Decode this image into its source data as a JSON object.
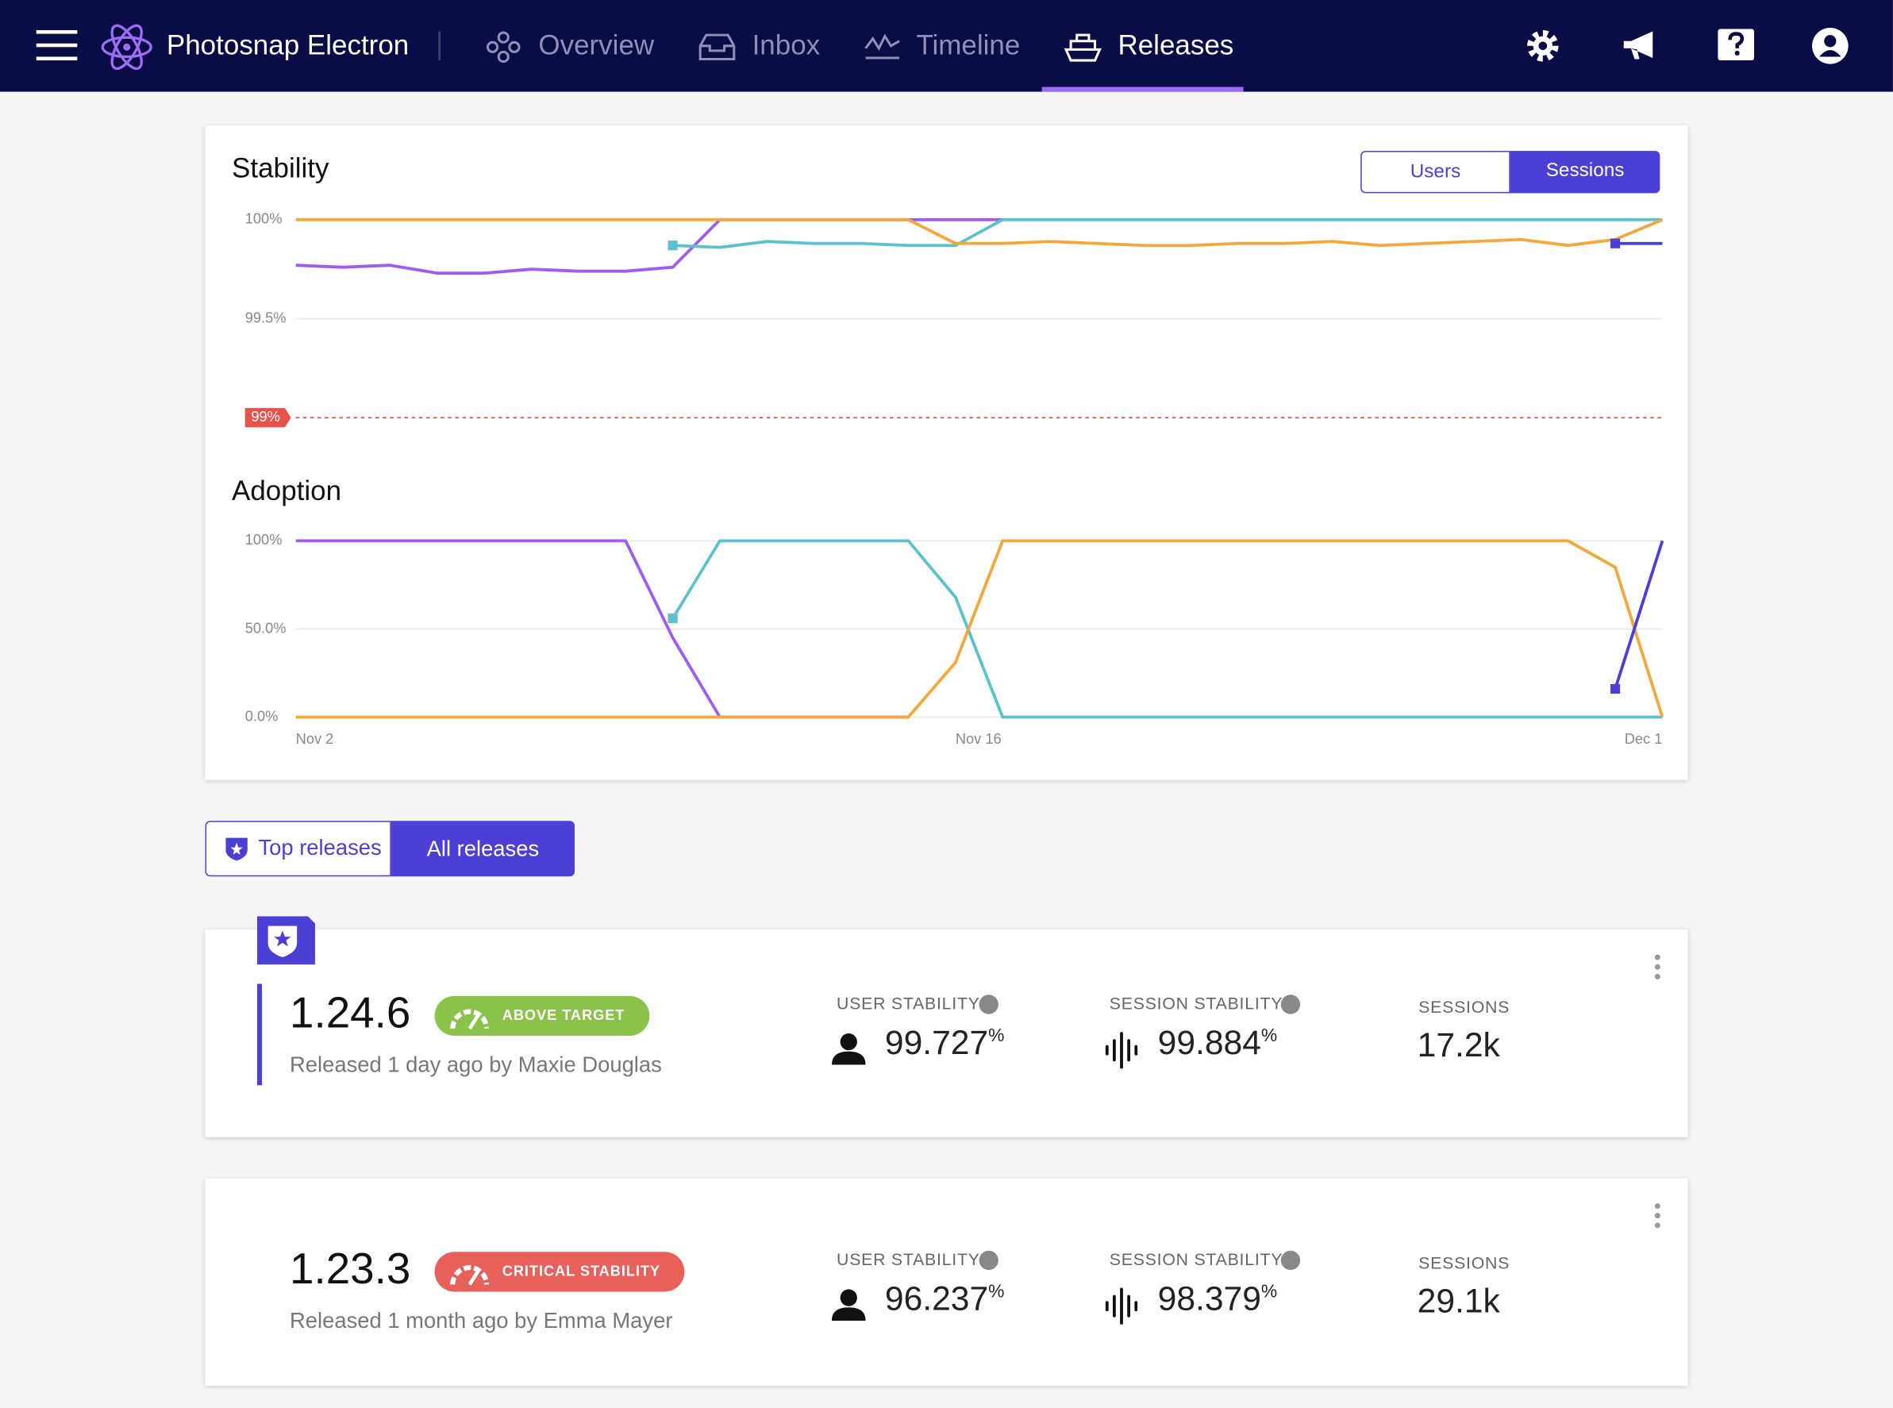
{
  "nav": {
    "app_name": "Photosnap Electron",
    "items": [
      "Overview",
      "Inbox",
      "Timeline",
      "Releases"
    ]
  },
  "chart_toggle": [
    "Users",
    "Sessions"
  ],
  "release_filter": [
    "Top releases",
    "All releases"
  ],
  "chart_data": [
    {
      "type": "line",
      "title": "Stability",
      "ylim": [
        99,
        100
      ],
      "yticks": [
        {
          "value": 99.5,
          "label": "99.5%"
        },
        {
          "value": 100,
          "label": "100%"
        }
      ],
      "grid": true,
      "threshold": {
        "value": 99,
        "label": "99%",
        "color": "#e5534b"
      },
      "categories": [
        null,
        null,
        null,
        null,
        null,
        null,
        null,
        null,
        null,
        null,
        null,
        null,
        null,
        null,
        null,
        null,
        null,
        null,
        null,
        null,
        null,
        null,
        null,
        null,
        null,
        null,
        null,
        null,
        null,
        null
      ],
      "series": [
        {
          "color": "#a05cf0",
          "values": [
            99.77,
            99.76,
            99.77,
            99.73,
            99.73,
            99.75,
            99.74,
            99.74,
            99.76,
            100,
            100,
            100,
            100,
            100,
            100,
            100,
            null,
            null,
            null,
            null,
            null,
            null,
            null,
            null,
            null,
            null,
            null,
            null,
            null,
            null
          ]
        },
        {
          "color": "#5bc0d0",
          "values": [
            null,
            null,
            null,
            null,
            null,
            null,
            null,
            null,
            99.87,
            99.86,
            99.89,
            99.88,
            99.88,
            99.87,
            99.87,
            100,
            100,
            100,
            100,
            100,
            100,
            100,
            100,
            100,
            100,
            100,
            100,
            100,
            100,
            100
          ]
        },
        {
          "color": "#f5a83a",
          "values": [
            100,
            100,
            100,
            100,
            100,
            100,
            100,
            100,
            100,
            100,
            100,
            100,
            100,
            100,
            99.88,
            99.88,
            99.89,
            99.88,
            99.87,
            99.87,
            99.88,
            99.88,
            99.89,
            99.87,
            99.88,
            99.89,
            99.9,
            99.87,
            99.9,
            100
          ]
        },
        {
          "color": "#4a3fd8",
          "values": [
            null,
            null,
            null,
            null,
            null,
            null,
            null,
            null,
            null,
            null,
            null,
            null,
            null,
            null,
            null,
            null,
            null,
            null,
            null,
            null,
            null,
            null,
            null,
            null,
            null,
            null,
            null,
            null,
            99.88,
            99.88
          ]
        }
      ]
    },
    {
      "type": "line",
      "title": "Adoption",
      "ylim": [
        0,
        100
      ],
      "yticks": [
        {
          "value": 0,
          "label": "0.0%"
        },
        {
          "value": 50,
          "label": "50.0%"
        },
        {
          "value": 100,
          "label": "100%"
        }
      ],
      "grid": true,
      "categories": [
        "Nov 2",
        null,
        null,
        null,
        null,
        null,
        null,
        null,
        null,
        null,
        null,
        null,
        null,
        null,
        "Nov 16",
        null,
        null,
        null,
        null,
        null,
        null,
        null,
        null,
        null,
        null,
        null,
        null,
        null,
        null,
        "Dec 1"
      ],
      "series": [
        {
          "color": "#a05cf0",
          "values": [
            100,
            100,
            100,
            100,
            100,
            100,
            100,
            100,
            45,
            0,
            0,
            0,
            0,
            0,
            null,
            null,
            null,
            null,
            null,
            null,
            null,
            null,
            null,
            null,
            null,
            null,
            null,
            null,
            null,
            null
          ]
        },
        {
          "color": "#5bc0d0",
          "values": [
            null,
            null,
            null,
            null,
            null,
            null,
            null,
            null,
            56,
            100,
            100,
            100,
            100,
            100,
            68,
            0,
            0,
            0,
            0,
            0,
            0,
            0,
            0,
            0,
            0,
            0,
            0,
            0,
            0,
            0
          ]
        },
        {
          "color": "#f5a83a",
          "values": [
            0,
            0,
            0,
            0,
            0,
            0,
            0,
            0,
            0,
            0,
            0,
            0,
            0,
            0,
            31,
            100,
            100,
            100,
            100,
            100,
            100,
            100,
            100,
            100,
            100,
            100,
            100,
            100,
            85,
            0
          ]
        },
        {
          "color": "#4a3fd8",
          "values": [
            null,
            null,
            null,
            null,
            null,
            null,
            null,
            null,
            null,
            null,
            null,
            null,
            null,
            null,
            null,
            null,
            null,
            null,
            null,
            null,
            null,
            null,
            null,
            null,
            null,
            null,
            null,
            null,
            16,
            100
          ]
        }
      ]
    }
  ],
  "releases": [
    {
      "version": "1.24.6",
      "badge": "ABOVE TARGET",
      "badge_color": "#8bc34a",
      "released": "Released 1 day ago by Maxie Douglas",
      "user_label": "USER STABILITY",
      "user_value": "99.727",
      "user_unit": "%",
      "session_label": "SESSION STABILITY",
      "session_value": "99.884",
      "session_unit": "%",
      "sessions_label": "SESSIONS",
      "sessions_value": "17.2k"
    },
    {
      "version": "1.23.3",
      "badge": "CRITICAL STABILITY",
      "badge_color": "#e8605a",
      "released": "Released 1 month ago by Emma Mayer",
      "user_label": "USER STABILITY",
      "user_value": "96.237",
      "user_unit": "%",
      "session_label": "SESSION STABILITY",
      "session_value": "98.379",
      "session_unit": "%",
      "sessions_label": "SESSIONS",
      "sessions_value": "29.1k"
    }
  ]
}
